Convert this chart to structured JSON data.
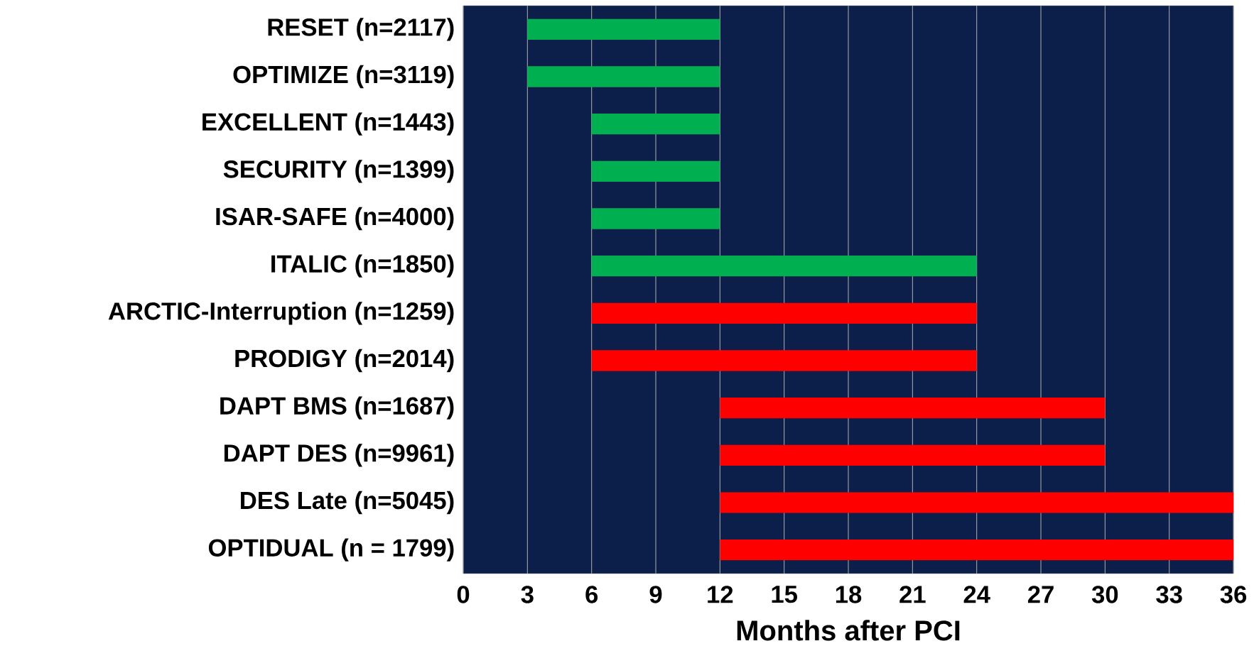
{
  "chart_data": {
    "type": "bar",
    "orientation": "horizontal",
    "xlabel": "Months after PCI",
    "categories": [
      "RESET (n=2117)",
      "OPTIMIZE (n=3119)",
      "EXCELLENT (n=1443)",
      "SECURITY (n=1399)",
      "ISAR-SAFE (n=4000)",
      "ITALIC (n=1850)",
      "ARCTIC-Interruption (n=1259)",
      "PRODIGY (n=2014)",
      "DAPT BMS (n=1687)",
      "DAPT DES (n=9961)",
      "DES Late (n=5045)",
      "OPTIDUAL (n = 1799)"
    ],
    "base": [
      3,
      3,
      6,
      6,
      6,
      6,
      6,
      6,
      12,
      12,
      12,
      12
    ],
    "values": [
      9,
      9,
      6,
      6,
      6,
      18,
      18,
      18,
      18,
      18,
      24,
      24
    ],
    "colors": [
      "#00b050",
      "#00b050",
      "#00b050",
      "#00b050",
      "#00b050",
      "#00b050",
      "#ff0000",
      "#ff0000",
      "#ff0000",
      "#ff0000",
      "#ff0000",
      "#ff0000"
    ],
    "xlim": [
      0,
      36
    ],
    "xticks": [
      0,
      3,
      6,
      9,
      12,
      15,
      18,
      21,
      24,
      27,
      30,
      33,
      36
    ],
    "grid": "x"
  }
}
